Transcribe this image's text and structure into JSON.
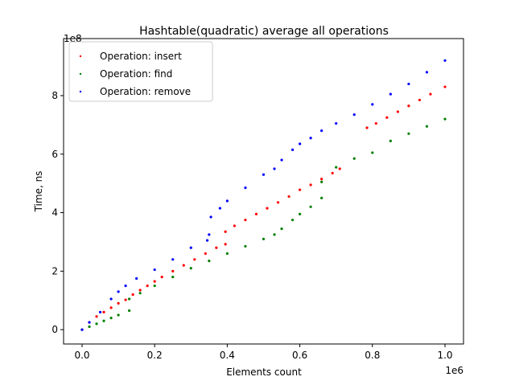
{
  "chart_data": {
    "type": "scatter",
    "title": "Hashtable(quadratic) average all operations",
    "x_label": "Elements count",
    "y_label": "Time, ns",
    "x_offset_label": "1e6",
    "y_offset_label": "1e8",
    "xlim": [
      -0.051,
      1.051
    ],
    "ylim": [
      -0.49,
      9.95
    ],
    "xticks": [
      {
        "value": 0,
        "label": "0.0"
      },
      0.2,
      0.4,
      0.6,
      0.8,
      {
        "value": 1,
        "label": "1.0"
      }
    ],
    "yticks": [
      0,
      2,
      4,
      6,
      8
    ],
    "legend": "upper left",
    "series": [
      {
        "name": "Operation: insert",
        "color": "#ff0000",
        "x": [
          0,
          0.02,
          0.04,
          0.06,
          0.08,
          0.1,
          0.12,
          0.14,
          0.16,
          0.18,
          0.2,
          0.22,
          0.25,
          0.28,
          0.31,
          0.34,
          0.37,
          0.395,
          0.395,
          0.42,
          0.45,
          0.48,
          0.51,
          0.54,
          0.57,
          0.6,
          0.63,
          0.66,
          0.69,
          0.71,
          0.785,
          0.81,
          0.84,
          0.87,
          0.9,
          0.93,
          0.96,
          1.0
        ],
        "values": [
          0,
          0.25,
          0.45,
          0.6,
          0.75,
          0.9,
          1.02,
          1.2,
          1.35,
          1.5,
          1.65,
          1.8,
          2.0,
          2.2,
          2.4,
          2.6,
          2.8,
          2.92,
          3.35,
          3.55,
          3.75,
          3.95,
          4.15,
          4.35,
          4.55,
          4.78,
          4.95,
          5.15,
          5.35,
          5.5,
          6.9,
          7.05,
          7.25,
          7.45,
          7.65,
          7.85,
          8.05,
          8.3
        ]
      },
      {
        "name": "Operation: find",
        "color": "#008000",
        "x": [
          0,
          0.02,
          0.04,
          0.06,
          0.08,
          0.1,
          0.13,
          0.13,
          0.16,
          0.2,
          0.25,
          0.3,
          0.35,
          0.4,
          0.45,
          0.5,
          0.53,
          0.55,
          0.58,
          0.6,
          0.63,
          0.66,
          0.66,
          0.7,
          0.75,
          0.8,
          0.85,
          0.9,
          0.95,
          1.0
        ],
        "values": [
          0,
          0.1,
          0.2,
          0.3,
          0.4,
          0.5,
          0.65,
          1.05,
          1.25,
          1.5,
          1.8,
          2.1,
          2.35,
          2.6,
          2.85,
          3.1,
          3.25,
          3.45,
          3.75,
          3.95,
          4.2,
          4.5,
          5.05,
          5.55,
          5.85,
          6.05,
          6.45,
          6.7,
          6.95,
          7.2
        ]
      },
      {
        "name": "Operation: remove",
        "color": "#0000ff",
        "x": [
          0,
          0.02,
          0.05,
          0.08,
          0.1,
          0.12,
          0.15,
          0.2,
          0.25,
          0.3,
          0.345,
          0.35,
          0.355,
          0.38,
          0.4,
          0.45,
          0.5,
          0.53,
          0.55,
          0.58,
          0.6,
          0.63,
          0.66,
          0.7,
          0.75,
          0.8,
          0.85,
          0.9,
          0.95,
          1.0
        ],
        "values": [
          0,
          0.25,
          0.6,
          1.05,
          1.3,
          1.5,
          1.75,
          2.05,
          2.4,
          2.8,
          3.05,
          3.25,
          3.85,
          4.15,
          4.4,
          4.85,
          5.3,
          5.5,
          5.8,
          6.15,
          6.35,
          6.55,
          6.8,
          7.05,
          7.35,
          7.7,
          8.05,
          8.4,
          8.8,
          9.2
        ]
      }
    ]
  }
}
